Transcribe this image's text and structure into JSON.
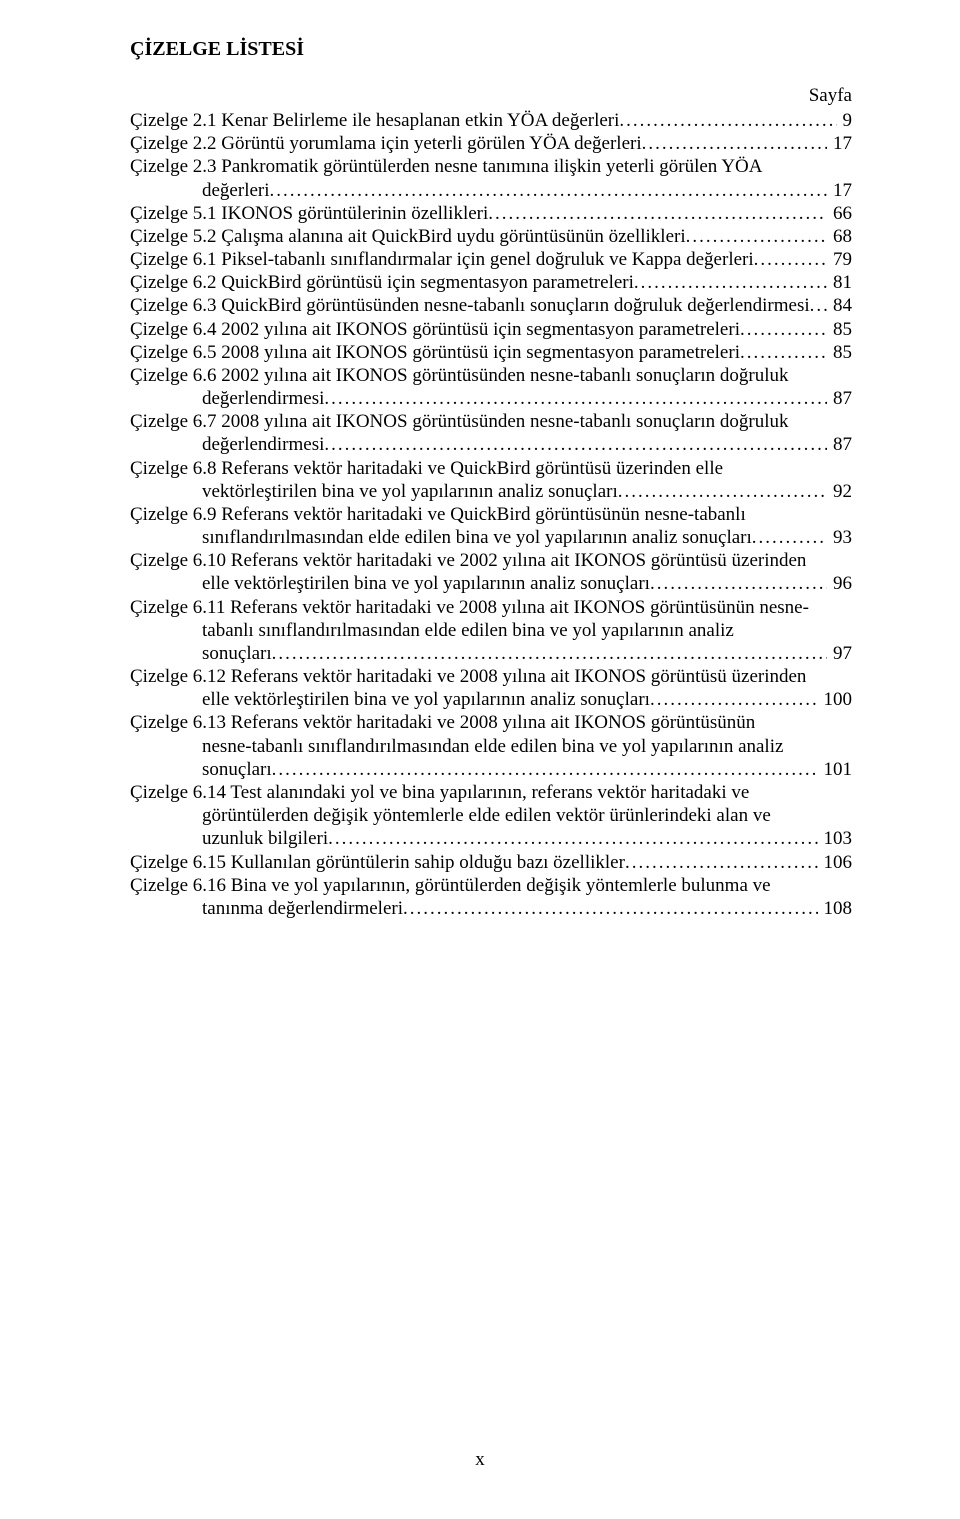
{
  "title": "ÇİZELGE LİSTESİ",
  "page_label": "Sayfa",
  "footer_page": "x",
  "entries": [
    {
      "pre": "",
      "last": "Çizelge 2.1 Kenar Belirleme ile hesaplanan etkin YÖA değerleri",
      "page": "9"
    },
    {
      "pre": "",
      "last": "Çizelge 2.2 Görüntü yorumlama için yeterli görülen YÖA değerleri",
      "page": "17"
    },
    {
      "pre": "Çizelge 2.3 Pankromatik görüntülerden nesne tanımına ilişkin yeterli görülen YÖA",
      "last_indent": true,
      "last": "değerleri",
      "page": "17"
    },
    {
      "pre": "",
      "last": "Çizelge 5.1 IKONOS görüntülerinin özellikleri",
      "page": "66"
    },
    {
      "pre": "",
      "last": "Çizelge 5.2 Çalışma alanına ait QuickBird uydu görüntüsünün özellikleri",
      "page": "68"
    },
    {
      "pre": "",
      "last": "Çizelge 6.1 Piksel-tabanlı sınıflandırmalar için genel doğruluk ve Kappa değerleri",
      "page": "79"
    },
    {
      "pre": "",
      "last": "Çizelge 6.2 QuickBird görüntüsü için segmentasyon parametreleri",
      "page": "81"
    },
    {
      "pre": "",
      "last": "Çizelge 6.3 QuickBird görüntüsünden nesne-tabanlı sonuçların doğruluk değerlendirmesi",
      "page": "84"
    },
    {
      "pre": "",
      "last": "Çizelge 6.4 2002 yılına ait IKONOS görüntüsü için segmentasyon parametreleri",
      "page": "85"
    },
    {
      "pre": "",
      "last": "Çizelge 6.5 2008 yılına ait IKONOS görüntüsü için segmentasyon parametreleri",
      "page": "85"
    },
    {
      "pre": "Çizelge 6.6 2002 yılına ait IKONOS görüntüsünden nesne-tabanlı sonuçların doğruluk",
      "last_indent": true,
      "last": "değerlendirmesi",
      "page": "87"
    },
    {
      "pre": "Çizelge 6.7 2008 yılına ait IKONOS görüntüsünden nesne-tabanlı sonuçların doğruluk",
      "last_indent": true,
      "last": "değerlendirmesi",
      "page": "87"
    },
    {
      "pre": "Çizelge 6.8 Referans vektör haritadaki ve QuickBird görüntüsü üzerinden elle",
      "last_indent": true,
      "last": "vektörleştirilen bina ve yol yapılarının analiz sonuçları",
      "page": "92"
    },
    {
      "pre": "Çizelge 6.9 Referans vektör haritadaki ve QuickBird görüntüsünün nesne-tabanlı",
      "last_indent": true,
      "last": "sınıflandırılmasından elde edilen bina ve yol yapılarının analiz sonuçları",
      "page": "93"
    },
    {
      "pre": "Çizelge 6.10 Referans vektör haritadaki ve 2002 yılına ait IKONOS görüntüsü üzerinden",
      "last_indent": true,
      "last": "elle vektörleştirilen bina ve yol yapılarının analiz sonuçları",
      "page": "96"
    },
    {
      "pre": "Çizelge 6.11 Referans vektör haritadaki ve 2008 yılına ait IKONOS görüntüsünün nesne-",
      "pre2_indent": true,
      "pre2": "tabanlı sınıflandırılmasından elde edilen bina ve yol yapılarının analiz",
      "last_indent": true,
      "last": "sonuçları",
      "page": "97"
    },
    {
      "pre": "Çizelge 6.12 Referans vektör haritadaki ve 2008 yılına ait IKONOS görüntüsü üzerinden",
      "last_indent": true,
      "last": "elle vektörleştirilen bina ve yol yapılarının analiz sonuçları",
      "page": "100"
    },
    {
      "pre": "Çizelge 6.13 Referans vektör haritadaki ve 2008 yılına ait IKONOS görüntüsünün",
      "pre2_indent": true,
      "pre2": "nesne-tabanlı sınıflandırılmasından elde edilen bina ve yol yapılarının analiz",
      "last_indent": true,
      "last": "sonuçları",
      "page": "101"
    },
    {
      "pre": "Çizelge 6.14 Test alanındaki yol ve bina yapılarının, referans vektör haritadaki ve",
      "pre2_indent": true,
      "pre2": "görüntülerden değişik yöntemlerle elde edilen vektör ürünlerindeki alan ve",
      "last_indent": true,
      "last": "uzunluk bilgileri",
      "page": "103"
    },
    {
      "pre": "",
      "last": "Çizelge 6.15 Kullanılan görüntülerin sahip olduğu bazı özellikler",
      "page": "106"
    },
    {
      "pre": "Çizelge 6.16 Bina ve yol yapılarının, görüntülerden değişik yöntemlerle bulunma ve",
      "last_indent": true,
      "last": "tanınma değerlendirmeleri",
      "page": "108"
    }
  ]
}
